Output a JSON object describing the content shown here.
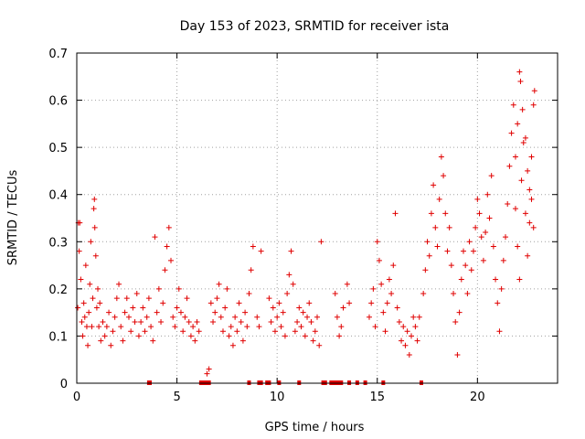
{
  "chart_data": {
    "type": "scatter",
    "title": "Day 153 of 2023, SRMTID for receiver ista",
    "xlabel": "GPS time / hours",
    "ylabel": "SRMTID / TECUs",
    "xlim": [
      0,
      24
    ],
    "ylim": [
      0,
      0.7
    ],
    "xticks": [
      0,
      5,
      10,
      15,
      20
    ],
    "xtick_labels": [
      "0",
      "5",
      "10",
      "15",
      "20"
    ],
    "yticks": [
      0,
      0.1,
      0.2,
      0.3,
      0.4,
      0.5,
      0.6,
      0.7
    ],
    "ytick_labels": [
      "0",
      "0.1",
      "0.2",
      "0.3",
      "0.4",
      "0.5",
      "0.6",
      "0.7"
    ],
    "grid": true,
    "marker": "+",
    "color": "#e00000",
    "series": [
      {
        "name": "SRMTID",
        "points": [
          [
            0.05,
            0.16
          ],
          [
            0.08,
            0.34
          ],
          [
            0.12,
            0.28
          ],
          [
            0.15,
            0.34
          ],
          [
            0.2,
            0.22
          ],
          [
            0.25,
            0.13
          ],
          [
            0.3,
            0.1
          ],
          [
            0.35,
            0.17
          ],
          [
            0.4,
            0.14
          ],
          [
            0.45,
            0.25
          ],
          [
            0.5,
            0.12
          ],
          [
            0.55,
            0.08
          ],
          [
            0.6,
            0.15
          ],
          [
            0.65,
            0.21
          ],
          [
            0.7,
            0.3
          ],
          [
            0.75,
            0.12
          ],
          [
            0.8,
            0.18
          ],
          [
            0.85,
            0.37
          ],
          [
            0.88,
            0.39
          ],
          [
            0.9,
            0.33
          ],
          [
            0.95,
            0.27
          ],
          [
            1.0,
            0.16
          ],
          [
            1.05,
            0.2
          ],
          [
            1.1,
            0.12
          ],
          [
            1.15,
            0.17
          ],
          [
            1.2,
            0.09
          ],
          [
            1.3,
            0.13
          ],
          [
            1.4,
            0.1
          ],
          [
            1.5,
            0.12
          ],
          [
            1.6,
            0.15
          ],
          [
            1.7,
            0.08
          ],
          [
            1.8,
            0.11
          ],
          [
            1.9,
            0.14
          ],
          [
            2.0,
            0.18
          ],
          [
            2.1,
            0.21
          ],
          [
            2.2,
            0.12
          ],
          [
            2.3,
            0.09
          ],
          [
            2.4,
            0.15
          ],
          [
            2.5,
            0.18
          ],
          [
            2.6,
            0.14
          ],
          [
            2.7,
            0.11
          ],
          [
            2.8,
            0.16
          ],
          [
            2.9,
            0.13
          ],
          [
            3.0,
            0.19
          ],
          [
            3.1,
            0.1
          ],
          [
            3.2,
            0.13
          ],
          [
            3.3,
            0.16
          ],
          [
            3.4,
            0.11
          ],
          [
            3.5,
            0.14
          ],
          [
            3.6,
            0.18
          ],
          [
            3.7,
            0.12
          ],
          [
            3.8,
            0.09
          ],
          [
            3.9,
            0.31
          ],
          [
            4.0,
            0.15
          ],
          [
            4.1,
            0.2
          ],
          [
            4.2,
            0.13
          ],
          [
            4.3,
            0.17
          ],
          [
            4.4,
            0.24
          ],
          [
            4.5,
            0.29
          ],
          [
            4.6,
            0.33
          ],
          [
            4.7,
            0.26
          ],
          [
            4.8,
            0.14
          ],
          [
            4.9,
            0.12
          ],
          [
            5.0,
            0.16
          ],
          [
            5.1,
            0.2
          ],
          [
            5.2,
            0.15
          ],
          [
            5.3,
            0.11
          ],
          [
            5.4,
            0.14
          ],
          [
            5.5,
            0.18
          ],
          [
            5.6,
            0.13
          ],
          [
            5.7,
            0.1
          ],
          [
            5.8,
            0.12
          ],
          [
            5.9,
            0.09
          ],
          [
            6.0,
            0.13
          ],
          [
            6.1,
            0.11
          ],
          [
            6.5,
            0.02
          ],
          [
            6.6,
            0.03
          ],
          [
            6.7,
            0.17
          ],
          [
            6.8,
            0.13
          ],
          [
            6.9,
            0.15
          ],
          [
            7.0,
            0.18
          ],
          [
            7.1,
            0.21
          ],
          [
            7.2,
            0.14
          ],
          [
            7.3,
            0.11
          ],
          [
            7.4,
            0.16
          ],
          [
            7.5,
            0.2
          ],
          [
            7.6,
            0.1
          ],
          [
            7.7,
            0.12
          ],
          [
            7.8,
            0.08
          ],
          [
            7.9,
            0.14
          ],
          [
            8.0,
            0.11
          ],
          [
            8.1,
            0.17
          ],
          [
            8.2,
            0.13
          ],
          [
            8.3,
            0.09
          ],
          [
            8.4,
            0.15
          ],
          [
            8.5,
            0.12
          ],
          [
            8.6,
            0.19
          ],
          [
            8.7,
            0.24
          ],
          [
            8.8,
            0.29
          ],
          [
            9.0,
            0.14
          ],
          [
            9.1,
            0.12
          ],
          [
            9.2,
            0.28
          ],
          [
            9.6,
            0.18
          ],
          [
            9.7,
            0.13
          ],
          [
            9.8,
            0.16
          ],
          [
            9.9,
            0.11
          ],
          [
            10.0,
            0.14
          ],
          [
            10.1,
            0.17
          ],
          [
            10.2,
            0.12
          ],
          [
            10.3,
            0.15
          ],
          [
            10.4,
            0.1
          ],
          [
            10.5,
            0.19
          ],
          [
            10.6,
            0.23
          ],
          [
            10.7,
            0.28
          ],
          [
            10.8,
            0.21
          ],
          [
            10.9,
            0.11
          ],
          [
            11.0,
            0.13
          ],
          [
            11.1,
            0.16
          ],
          [
            11.2,
            0.12
          ],
          [
            11.3,
            0.15
          ],
          [
            11.4,
            0.1
          ],
          [
            11.5,
            0.14
          ],
          [
            11.6,
            0.17
          ],
          [
            11.7,
            0.13
          ],
          [
            11.8,
            0.09
          ],
          [
            11.9,
            0.11
          ],
          [
            12.0,
            0.14
          ],
          [
            12.1,
            0.08
          ],
          [
            12.2,
            0.3
          ],
          [
            12.9,
            0.19
          ],
          [
            13.0,
            0.14
          ],
          [
            13.1,
            0.1
          ],
          [
            13.2,
            0.12
          ],
          [
            13.3,
            0.16
          ],
          [
            13.5,
            0.21
          ],
          [
            13.6,
            0.17
          ],
          [
            14.6,
            0.14
          ],
          [
            14.7,
            0.17
          ],
          [
            14.8,
            0.2
          ],
          [
            14.9,
            0.12
          ],
          [
            15.0,
            0.3
          ],
          [
            15.1,
            0.26
          ],
          [
            15.2,
            0.21
          ],
          [
            15.3,
            0.15
          ],
          [
            15.4,
            0.11
          ],
          [
            15.5,
            0.17
          ],
          [
            15.6,
            0.22
          ],
          [
            15.7,
            0.19
          ],
          [
            15.8,
            0.25
          ],
          [
            15.9,
            0.36
          ],
          [
            16.0,
            0.16
          ],
          [
            16.1,
            0.13
          ],
          [
            16.2,
            0.09
          ],
          [
            16.3,
            0.12
          ],
          [
            16.4,
            0.08
          ],
          [
            16.5,
            0.11
          ],
          [
            16.6,
            0.06
          ],
          [
            16.7,
            0.1
          ],
          [
            16.8,
            0.14
          ],
          [
            16.9,
            0.12
          ],
          [
            17.0,
            0.09
          ],
          [
            17.1,
            0.14
          ],
          [
            17.3,
            0.19
          ],
          [
            17.4,
            0.24
          ],
          [
            17.5,
            0.3
          ],
          [
            17.6,
            0.27
          ],
          [
            17.7,
            0.36
          ],
          [
            17.8,
            0.42
          ],
          [
            17.9,
            0.33
          ],
          [
            18.0,
            0.29
          ],
          [
            18.1,
            0.39
          ],
          [
            18.2,
            0.48
          ],
          [
            18.3,
            0.44
          ],
          [
            18.4,
            0.36
          ],
          [
            18.5,
            0.28
          ],
          [
            18.6,
            0.33
          ],
          [
            18.7,
            0.25
          ],
          [
            18.8,
            0.19
          ],
          [
            18.9,
            0.13
          ],
          [
            19.0,
            0.06
          ],
          [
            19.1,
            0.15
          ],
          [
            19.2,
            0.22
          ],
          [
            19.3,
            0.28
          ],
          [
            19.4,
            0.25
          ],
          [
            19.5,
            0.19
          ],
          [
            19.6,
            0.3
          ],
          [
            19.7,
            0.24
          ],
          [
            19.8,
            0.28
          ],
          [
            19.9,
            0.33
          ],
          [
            20.0,
            0.39
          ],
          [
            20.1,
            0.36
          ],
          [
            20.2,
            0.31
          ],
          [
            20.3,
            0.26
          ],
          [
            20.4,
            0.32
          ],
          [
            20.5,
            0.4
          ],
          [
            20.6,
            0.35
          ],
          [
            20.7,
            0.44
          ],
          [
            20.8,
            0.29
          ],
          [
            20.9,
            0.22
          ],
          [
            21.0,
            0.17
          ],
          [
            21.1,
            0.11
          ],
          [
            21.2,
            0.2
          ],
          [
            21.3,
            0.26
          ],
          [
            21.4,
            0.31
          ],
          [
            21.5,
            0.38
          ],
          [
            21.6,
            0.46
          ],
          [
            21.7,
            0.53
          ],
          [
            21.8,
            0.59
          ],
          [
            21.9,
            0.37
          ],
          [
            22.0,
            0.29
          ],
          [
            22.1,
            0.22
          ],
          [
            22.2,
            0.43
          ],
          [
            22.3,
            0.51
          ],
          [
            22.4,
            0.36
          ],
          [
            22.5,
            0.27
          ],
          [
            22.6,
            0.34
          ],
          [
            22.7,
            0.48
          ],
          [
            22.8,
            0.59
          ],
          [
            22.85,
            0.62
          ],
          [
            22.1,
            0.66
          ],
          [
            22.15,
            0.64
          ],
          [
            22.25,
            0.58
          ],
          [
            22.4,
            0.52
          ],
          [
            22.5,
            0.45
          ],
          [
            22.6,
            0.41
          ],
          [
            22.7,
            0.39
          ],
          [
            22.8,
            0.33
          ],
          [
            22.0,
            0.55
          ],
          [
            21.9,
            0.48
          ]
        ],
        "zero_values_at": [
          3.6,
          3.65,
          6.2,
          6.3,
          6.4,
          6.5,
          6.6,
          8.6,
          9.1,
          9.2,
          9.5,
          9.6,
          10.1,
          11.1,
          12.3,
          12.4,
          12.7,
          12.8,
          12.9,
          13.0,
          13.1,
          13.2,
          13.6,
          14.0,
          14.4,
          15.3,
          17.2
        ]
      }
    ]
  }
}
